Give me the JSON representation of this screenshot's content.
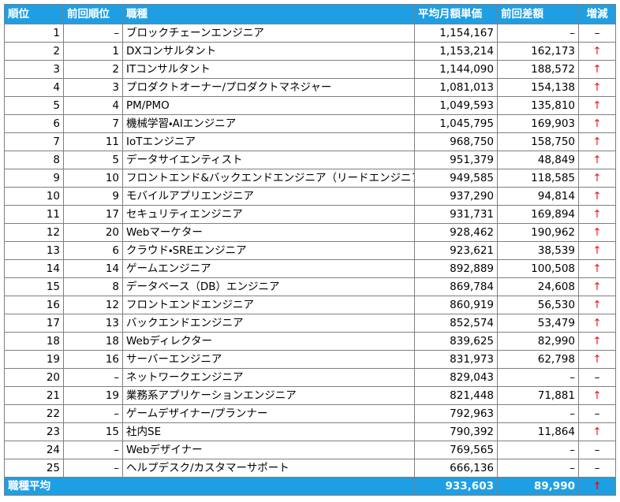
{
  "table": {
    "header": [
      "順位",
      "前回順位",
      "職種",
      "平均月額単価",
      "前回差額",
      "増減"
    ],
    "rows": [
      [
        "1",
        "–",
        "ブロックチェーンエンジニア",
        "1,154,167",
        "–",
        "–"
      ],
      [
        "2",
        "1",
        "DXコンサルタント",
        "1,153,214",
        "162,173",
        "↑"
      ],
      [
        "3",
        "2",
        "ITコンサルタント",
        "1,144,090",
        "188,572",
        "↑"
      ],
      [
        "4",
        "3",
        "プロダクトオーナー/プロダクトマネジャー",
        "1,081,013",
        "154,138",
        "↑"
      ],
      [
        "5",
        "4",
        "PM/PMO",
        "1,049,593",
        "135,810",
        "↑"
      ],
      [
        "6",
        "7",
        "機械学習・AIエンジニア",
        "1,045,795",
        "169,903",
        "↑"
      ],
      [
        "7",
        "11",
        "IoTエンジニア",
        "968,750",
        "158,750",
        "↑"
      ],
      [
        "8",
        "5",
        "データサイエンティスト",
        "951,379",
        "48,849",
        "↑"
      ],
      [
        "9",
        "10",
        "フロントエンド&バックエンドエンジニア（リードエンジニア）",
        "949,585",
        "118,585",
        "↑"
      ],
      [
        "10",
        "9",
        "モバイルアプリエンジニア",
        "937,290",
        "94,814",
        "↑"
      ],
      [
        "11",
        "17",
        "セキュリティエンジニア",
        "931,731",
        "169,894",
        "↑"
      ],
      [
        "12",
        "20",
        "Webマーケター",
        "928,462",
        "190,962",
        "↑"
      ],
      [
        "13",
        "6",
        "クラウド・SREエンジニア",
        "923,621",
        "38,539",
        "↑"
      ],
      [
        "14",
        "14",
        "ゲームエンジニア",
        "892,889",
        "100,508",
        "↑"
      ],
      [
        "15",
        "8",
        "データベース（DB）エンジニア",
        "869,784",
        "24,608",
        "↑"
      ],
      [
        "16",
        "12",
        "フロントエンドエンジニア",
        "860,919",
        "56,530",
        "↑"
      ],
      [
        "17",
        "13",
        "バックエンドエンジニア",
        "852,574",
        "53,479",
        "↑"
      ],
      [
        "18",
        "18",
        "Webディレクター",
        "839,625",
        "82,990",
        "↑"
      ],
      [
        "19",
        "16",
        "サーバーエンジニア",
        "831,973",
        "62,798",
        "↑"
      ],
      [
        "20",
        "–",
        "ネットワークエンジニア",
        "829,043",
        "–",
        "–"
      ],
      [
        "21",
        "19",
        "業務系アプリケーションエンジニア",
        "821,448",
        "71,881",
        "↑"
      ],
      [
        "22",
        "–",
        "ゲームデザイナー/プランナー",
        "792,963",
        "–",
        "–"
      ],
      [
        "23",
        "15",
        "社内SE",
        "790,392",
        "11,864",
        "↑"
      ],
      [
        "24",
        "–",
        "Webデザイナー",
        "769,565",
        "–",
        "–"
      ],
      [
        "25",
        "–",
        "ヘルプデスク/カスタマーサポート",
        "666,136",
        "–",
        "–"
      ]
    ],
    "footer": {
      "label": "職種平均",
      "avg": "933,603",
      "diff": "89,990",
      "trend": "↑"
    }
  }
}
